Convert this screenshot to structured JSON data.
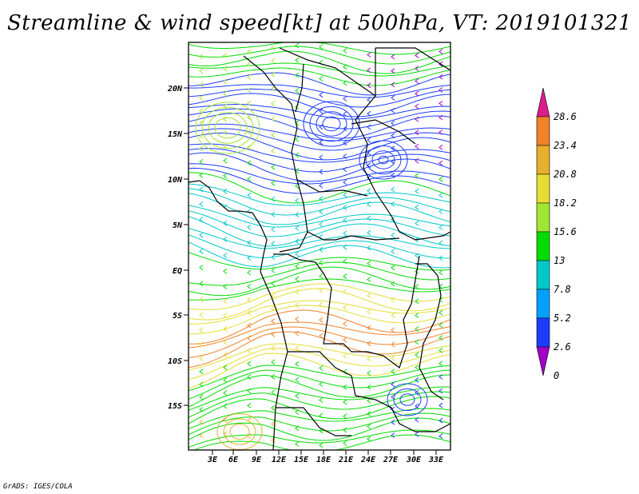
{
  "title": "Streamline & wind speed[kt] at 500hPa, VT: 2019101321",
  "footer": "GrADS: IGES/COLA",
  "axes": {
    "lat_labels": [
      "20N",
      "15N",
      "10N",
      "5N",
      "EQ",
      "5S",
      "10S",
      "15S"
    ],
    "lon_labels": [
      "3E",
      "6E",
      "9E",
      "12E",
      "15E",
      "18E",
      "21E",
      "24E",
      "27E",
      "30E",
      "33E"
    ]
  },
  "colorbar": {
    "labels": [
      "28.6",
      "23.4",
      "20.8",
      "18.2",
      "15.6",
      "13",
      "7.8",
      "5.2",
      "2.6",
      "0"
    ],
    "colors": [
      "#dc1e8c",
      "#f08228",
      "#e6af2d",
      "#e6dc32",
      "#a0e632",
      "#00dc00",
      "#00c8c8",
      "#00a0ff",
      "#1e3cff",
      "#a000c8"
    ]
  }
}
